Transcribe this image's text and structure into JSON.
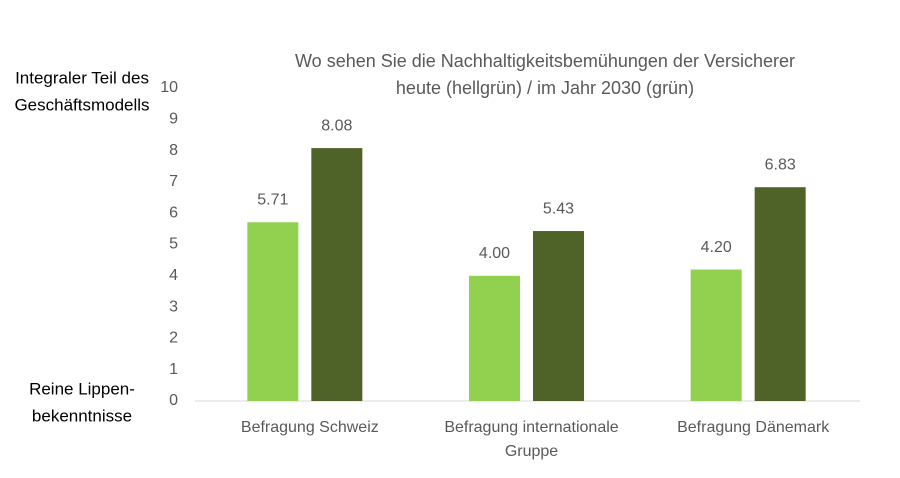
{
  "chart_data": {
    "type": "bar",
    "title": [
      "Wo sehen Sie die Nachhaltigkeitsbemühungen der Versicherer",
      "heute (hellgrün) / im Jahr 2030 (grün)"
    ],
    "y_annotations": {
      "top": [
        "Integraler Teil des",
        "Geschäftsmodells"
      ],
      "bottom": [
        "Reine Lippen-",
        "bekenntnisse"
      ]
    },
    "categories": [
      [
        "Befragung Schweiz"
      ],
      [
        "Befragung internationale",
        "Gruppe"
      ],
      [
        "Befragung Dänemark"
      ]
    ],
    "series": [
      {
        "color": "#92d050",
        "values": [
          5.71,
          4.0,
          4.2
        ],
        "value_labels": [
          "5.71",
          "4.00",
          "4.20"
        ]
      },
      {
        "color": "#4f6228",
        "values": [
          8.08,
          5.43,
          6.83
        ],
        "value_labels": [
          "8.08",
          "5.43",
          "6.83"
        ]
      }
    ],
    "ylim": [
      0,
      10
    ],
    "yticks": [
      0,
      1,
      2,
      3,
      4,
      5,
      6,
      7,
      8,
      9,
      10
    ],
    "grid": false
  }
}
